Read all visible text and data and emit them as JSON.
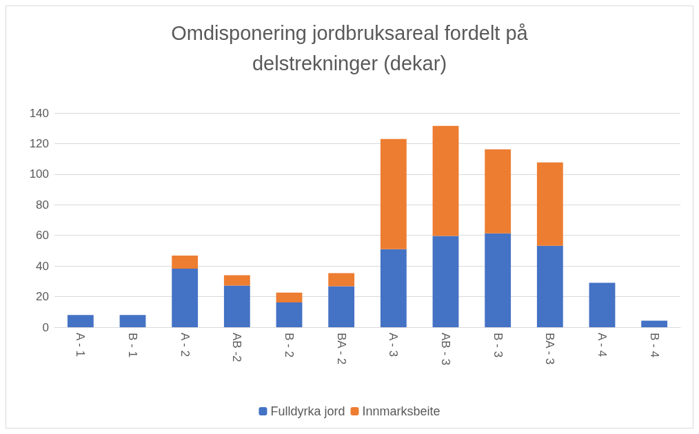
{
  "chart_data": {
    "type": "bar",
    "title": "Omdisponering jordbruksareal fordelt på\ndelstrekninger (dekar)",
    "categories": [
      "A - 1",
      "B - 1",
      "A - 2",
      "AB -2",
      "B - 2",
      "BA - 2",
      "A - 3",
      "AB - 3",
      "B - 3",
      "BA - 3",
      "A - 4",
      "B - 4"
    ],
    "series": [
      {
        "name": "Fulldyrka jord",
        "color": "#4472c4",
        "values": [
          8,
          8,
          38.3,
          27.2,
          16.2,
          26.8,
          51,
          59.6,
          61.3,
          53.2,
          29,
          4.3
        ]
      },
      {
        "name": "Innmarksbeite",
        "color": "#ed7d31",
        "values": [
          null,
          null,
          8.5,
          6.8,
          6.4,
          8.5,
          72,
          72,
          55,
          54.5,
          null,
          null
        ]
      }
    ],
    "stacked": true,
    "ylim": [
      0,
      140
    ],
    "yticks": [
      0,
      20,
      40,
      60,
      80,
      100,
      120,
      140
    ],
    "grid": "y",
    "legend": "bottom"
  }
}
